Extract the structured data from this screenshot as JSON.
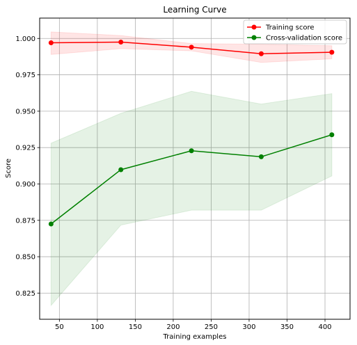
{
  "chart_data": {
    "type": "line",
    "title": "Learning Curve",
    "xlabel": "Training examples",
    "ylabel": "Score",
    "xlim": [
      24,
      433
    ],
    "ylim": [
      0.807,
      1.014
    ],
    "xticks": [
      50,
      100,
      150,
      200,
      250,
      300,
      350,
      400
    ],
    "yticks": [
      0.825,
      0.85,
      0.875,
      0.9,
      0.925,
      0.95,
      0.975,
      1.0
    ],
    "grid": true,
    "legend_position": "top-right",
    "x": [
      39,
      131,
      224,
      316,
      409
    ],
    "series": [
      {
        "name": "Training score",
        "color": "#ff0000",
        "band_color": "#ff0000",
        "values": [
          0.997,
          0.9975,
          0.994,
          0.9895,
          0.9905
        ],
        "upper": [
          1.0045,
          1.002,
          0.9965,
          0.996,
          0.995
        ],
        "lower": [
          0.989,
          0.993,
          0.9915,
          0.9835,
          0.986
        ]
      },
      {
        "name": "Cross-validation score",
        "color": "#008000",
        "band_color": "#008000",
        "values": [
          0.8725,
          0.9098,
          0.9228,
          0.9187,
          0.9338
        ],
        "upper": [
          0.928,
          0.9485,
          0.9637,
          0.9549,
          0.9621
        ],
        "lower": [
          0.8165,
          0.8717,
          0.882,
          0.882,
          0.9055
        ]
      }
    ]
  }
}
